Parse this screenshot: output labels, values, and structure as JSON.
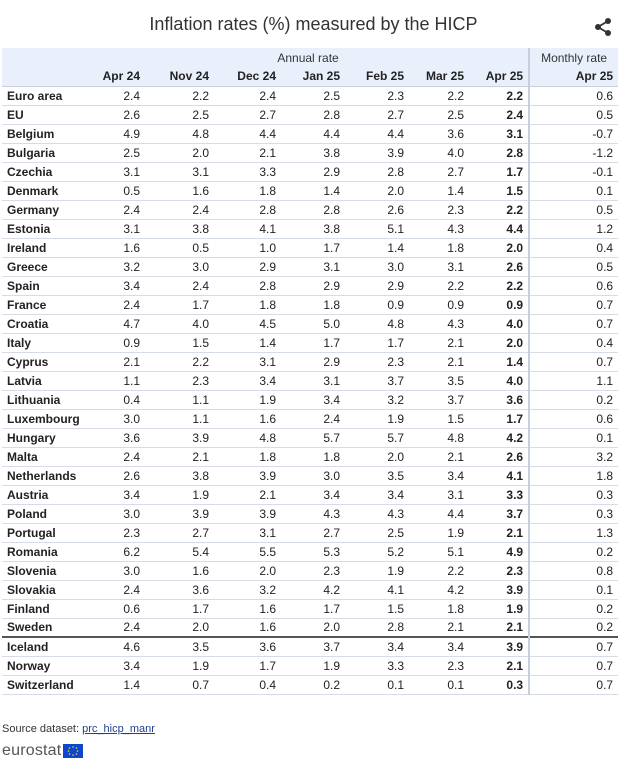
{
  "title": "Inflation rates (%) measured by the HICP",
  "group_headers": {
    "annual": "Annual rate",
    "monthly": "Monthly rate"
  },
  "columns": [
    "Apr 24",
    "Nov 24",
    "Dec 24",
    "Jan 25",
    "Feb 25",
    "Mar 25",
    "Apr 25",
    "Apr 25"
  ],
  "rows": [
    {
      "country": "Euro area",
      "values": [
        "2.4",
        "2.2",
        "2.4",
        "2.5",
        "2.3",
        "2.2",
        "2.2",
        "0.6"
      ]
    },
    {
      "country": "EU",
      "values": [
        "2.6",
        "2.5",
        "2.7",
        "2.8",
        "2.7",
        "2.5",
        "2.4",
        "0.5"
      ]
    },
    {
      "country": "Belgium",
      "values": [
        "4.9",
        "4.8",
        "4.4",
        "4.4",
        "4.4",
        "3.6",
        "3.1",
        "-0.7"
      ]
    },
    {
      "country": "Bulgaria",
      "values": [
        "2.5",
        "2.0",
        "2.1",
        "3.8",
        "3.9",
        "4.0",
        "2.8",
        "-1.2"
      ]
    },
    {
      "country": "Czechia",
      "values": [
        "3.1",
        "3.1",
        "3.3",
        "2.9",
        "2.8",
        "2.7",
        "1.7",
        "-0.1"
      ]
    },
    {
      "country": "Denmark",
      "values": [
        "0.5",
        "1.6",
        "1.8",
        "1.4",
        "2.0",
        "1.4",
        "1.5",
        "0.1"
      ]
    },
    {
      "country": "Germany",
      "values": [
        "2.4",
        "2.4",
        "2.8",
        "2.8",
        "2.6",
        "2.3",
        "2.2",
        "0.5"
      ]
    },
    {
      "country": "Estonia",
      "values": [
        "3.1",
        "3.8",
        "4.1",
        "3.8",
        "5.1",
        "4.3",
        "4.4",
        "1.2"
      ]
    },
    {
      "country": "Ireland",
      "values": [
        "1.6",
        "0.5",
        "1.0",
        "1.7",
        "1.4",
        "1.8",
        "2.0",
        "0.4"
      ]
    },
    {
      "country": "Greece",
      "values": [
        "3.2",
        "3.0",
        "2.9",
        "3.1",
        "3.0",
        "3.1",
        "2.6",
        "0.5"
      ]
    },
    {
      "country": "Spain",
      "values": [
        "3.4",
        "2.4",
        "2.8",
        "2.9",
        "2.9",
        "2.2",
        "2.2",
        "0.6"
      ]
    },
    {
      "country": "France",
      "values": [
        "2.4",
        "1.7",
        "1.8",
        "1.8",
        "0.9",
        "0.9",
        "0.9",
        "0.7"
      ]
    },
    {
      "country": "Croatia",
      "values": [
        "4.7",
        "4.0",
        "4.5",
        "5.0",
        "4.8",
        "4.3",
        "4.0",
        "0.7"
      ]
    },
    {
      "country": "Italy",
      "values": [
        "0.9",
        "1.5",
        "1.4",
        "1.7",
        "1.7",
        "2.1",
        "2.0",
        "0.4"
      ]
    },
    {
      "country": "Cyprus",
      "values": [
        "2.1",
        "2.2",
        "3.1",
        "2.9",
        "2.3",
        "2.1",
        "1.4",
        "0.7"
      ]
    },
    {
      "country": "Latvia",
      "values": [
        "1.1",
        "2.3",
        "3.4",
        "3.1",
        "3.7",
        "3.5",
        "4.0",
        "1.1"
      ]
    },
    {
      "country": "Lithuania",
      "values": [
        "0.4",
        "1.1",
        "1.9",
        "3.4",
        "3.2",
        "3.7",
        "3.6",
        "0.2"
      ]
    },
    {
      "country": "Luxembourg",
      "values": [
        "3.0",
        "1.1",
        "1.6",
        "2.4",
        "1.9",
        "1.5",
        "1.7",
        "0.6"
      ]
    },
    {
      "country": "Hungary",
      "values": [
        "3.6",
        "3.9",
        "4.8",
        "5.7",
        "5.7",
        "4.8",
        "4.2",
        "0.1"
      ]
    },
    {
      "country": "Malta",
      "values": [
        "2.4",
        "2.1",
        "1.8",
        "1.8",
        "2.0",
        "2.1",
        "2.6",
        "3.2"
      ]
    },
    {
      "country": "Netherlands",
      "values": [
        "2.6",
        "3.8",
        "3.9",
        "3.0",
        "3.5",
        "3.4",
        "4.1",
        "1.8"
      ]
    },
    {
      "country": "Austria",
      "values": [
        "3.4",
        "1.9",
        "2.1",
        "3.4",
        "3.4",
        "3.1",
        "3.3",
        "0.3"
      ]
    },
    {
      "country": "Poland",
      "values": [
        "3.0",
        "3.9",
        "3.9",
        "4.3",
        "4.3",
        "4.4",
        "3.7",
        "0.3"
      ]
    },
    {
      "country": "Portugal",
      "values": [
        "2.3",
        "2.7",
        "3.1",
        "2.7",
        "2.5",
        "1.9",
        "2.1",
        "1.3"
      ]
    },
    {
      "country": "Romania",
      "values": [
        "6.2",
        "5.4",
        "5.5",
        "5.3",
        "5.2",
        "5.1",
        "4.9",
        "0.2"
      ]
    },
    {
      "country": "Slovenia",
      "values": [
        "3.0",
        "1.6",
        "2.0",
        "2.3",
        "1.9",
        "2.2",
        "2.3",
        "0.8"
      ]
    },
    {
      "country": "Slovakia",
      "values": [
        "2.4",
        "3.6",
        "3.2",
        "4.2",
        "4.1",
        "4.2",
        "3.9",
        "0.1"
      ]
    },
    {
      "country": "Finland",
      "values": [
        "0.6",
        "1.7",
        "1.6",
        "1.7",
        "1.5",
        "1.8",
        "1.9",
        "0.2"
      ]
    },
    {
      "country": "Sweden",
      "values": [
        "2.4",
        "2.0",
        "1.6",
        "2.0",
        "2.8",
        "2.1",
        "2.1",
        "0.2"
      ]
    },
    {
      "country": "Iceland",
      "values": [
        "4.6",
        "3.5",
        "3.6",
        "3.7",
        "3.4",
        "3.4",
        "3.9",
        "0.7"
      ]
    },
    {
      "country": "Norway",
      "values": [
        "3.4",
        "1.9",
        "1.7",
        "1.9",
        "3.3",
        "2.3",
        "2.1",
        "0.7"
      ]
    },
    {
      "country": "Switzerland",
      "values": [
        "1.4",
        "0.7",
        "0.4",
        "0.2",
        "0.1",
        "0.1",
        "0.3",
        "0.7"
      ]
    }
  ],
  "footer": {
    "source_label": "Source dataset:",
    "source_link": "prc_hicp_manr",
    "logo": "eurostat"
  },
  "icons": {
    "share": "share-icon",
    "flag": "eu-flag-icon"
  },
  "colors": {
    "header_bg": "#eaf0fb",
    "link": "#1d3f8f",
    "flag": "#0e47cb",
    "flag_stars": "#ffd617"
  }
}
